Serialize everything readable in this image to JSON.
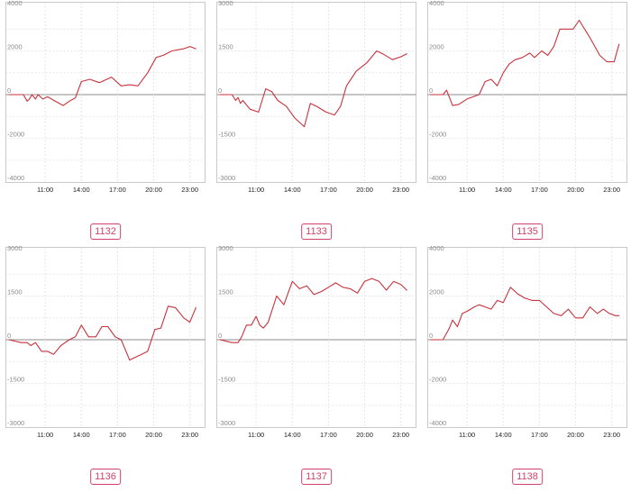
{
  "colors": {
    "line": "#c8323c",
    "badge": "#d0416b"
  },
  "chart_data": [
    {
      "type": "line",
      "title": "1132",
      "ylim": [
        -4000,
        4000
      ],
      "yticks": [
        4000,
        2000,
        0,
        -2000,
        -4000
      ],
      "xlim": [
        8,
        24
      ],
      "xticks": [
        11,
        14,
        17,
        20,
        23
      ],
      "xtick_labels": [
        "11:00",
        "14:00",
        "17:00",
        "20:00",
        "23:00"
      ],
      "x": [
        8.0,
        9.2,
        9.5,
        9.7,
        9.9,
        10.2,
        10.4,
        10.8,
        11.2,
        12.0,
        12.5,
        13.0,
        13.5,
        14.0,
        14.7,
        15.5,
        16.5,
        17.3,
        18.0,
        18.7,
        19.5,
        20.2,
        20.8,
        21.5,
        22.5,
        23.0,
        23.5
      ],
      "y": [
        0,
        0,
        -300,
        -200,
        0,
        -200,
        0,
        -200,
        -100,
        -350,
        -500,
        -300,
        -150,
        600,
        700,
        550,
        800,
        400,
        450,
        400,
        1000,
        1700,
        1800,
        2000,
        2100,
        2200,
        2100
      ]
    },
    {
      "type": "line",
      "title": "1133",
      "ylim": [
        -3000,
        3000
      ],
      "yticks": [
        3000,
        1500,
        0,
        -1500,
        -3000
      ],
      "xlim": [
        8,
        24
      ],
      "xticks": [
        11,
        14,
        17,
        20,
        23
      ],
      "xtick_labels": [
        "11:00",
        "14:00",
        "17:00",
        "20:00",
        "23:00"
      ],
      "x": [
        8.0,
        9.0,
        9.3,
        9.5,
        9.7,
        9.9,
        10.5,
        11.2,
        11.8,
        12.3,
        12.8,
        13.5,
        14.2,
        15.0,
        15.5,
        16.0,
        16.8,
        17.5,
        18.0,
        18.5,
        19.3,
        20.2,
        21.0,
        21.5,
        22.3,
        23.0,
        23.5
      ],
      "y": [
        0,
        0,
        -200,
        -100,
        -300,
        -200,
        -500,
        -600,
        200,
        100,
        -200,
        -400,
        -800,
        -1100,
        -300,
        -400,
        -600,
        -700,
        -400,
        300,
        800,
        1100,
        1500,
        1400,
        1200,
        1300,
        1400
      ]
    },
    {
      "type": "line",
      "title": "1135",
      "ylim": [
        -4000,
        4000
      ],
      "yticks": [
        4000,
        2000,
        0,
        -2000,
        -4000
      ],
      "xlim": [
        8,
        24
      ],
      "xticks": [
        11,
        14,
        17,
        20,
        23
      ],
      "xtick_labels": [
        "11:00",
        "14:00",
        "17:00",
        "20:00",
        "23:00"
      ],
      "x": [
        8.0,
        9.0,
        9.3,
        9.8,
        10.3,
        11.0,
        12.0,
        12.5,
        13.0,
        13.5,
        14.0,
        14.5,
        15.0,
        15.6,
        16.2,
        16.6,
        17.2,
        17.7,
        18.2,
        18.7,
        19.2,
        19.8,
        20.3,
        21.2,
        22.0,
        22.6,
        23.2,
        23.6
      ],
      "y": [
        0,
        0,
        200,
        -500,
        -450,
        -200,
        0,
        600,
        700,
        400,
        1000,
        1400,
        1600,
        1700,
        1900,
        1700,
        2000,
        1800,
        2200,
        3000,
        3000,
        3000,
        3400,
        2600,
        1800,
        1500,
        1500,
        2300
      ]
    },
    {
      "type": "line",
      "title": "1136",
      "ylim": [
        -3000,
        3000
      ],
      "yticks": [
        3000,
        1500,
        0,
        -1500,
        -3000
      ],
      "xlim": [
        8,
        24
      ],
      "xticks": [
        11,
        14,
        17,
        20,
        23
      ],
      "xtick_labels": [
        "11:00",
        "14:00",
        "17:00",
        "20:00",
        "23:00"
      ],
      "x": [
        8.0,
        9.0,
        9.5,
        9.8,
        10.2,
        10.7,
        11.2,
        11.7,
        12.3,
        13.0,
        13.5,
        14.0,
        14.6,
        15.2,
        15.7,
        16.2,
        16.8,
        17.3,
        18.0,
        18.5,
        19.0,
        19.5,
        20.1,
        20.6,
        21.2,
        21.8,
        22.5,
        23.0,
        23.5
      ],
      "y": [
        0,
        -100,
        -100,
        -200,
        -100,
        -400,
        -400,
        -500,
        -200,
        0,
        100,
        500,
        100,
        100,
        450,
        450,
        100,
        0,
        -700,
        -600,
        -500,
        -400,
        350,
        400,
        1150,
        1100,
        750,
        600,
        1100
      ]
    },
    {
      "type": "line",
      "title": "1137",
      "ylim": [
        -3000,
        3000
      ],
      "yticks": [
        3000,
        1500,
        0,
        -1500,
        -3000
      ],
      "xlim": [
        8,
        24
      ],
      "xticks": [
        11,
        14,
        17,
        20,
        23
      ],
      "xtick_labels": [
        "11:00",
        "14:00",
        "17:00",
        "20:00",
        "23:00"
      ],
      "x": [
        8.0,
        9.0,
        9.5,
        9.8,
        10.2,
        10.6,
        11.0,
        11.3,
        11.6,
        12.0,
        12.7,
        13.3,
        14.0,
        14.6,
        15.2,
        15.8,
        16.4,
        17.0,
        17.6,
        18.2,
        18.8,
        19.4,
        20.0,
        20.6,
        21.2,
        21.8,
        22.4,
        23.0,
        23.5
      ],
      "y": [
        0,
        -100,
        -100,
        100,
        500,
        500,
        800,
        500,
        400,
        600,
        1500,
        1200,
        2000,
        1750,
        1850,
        1550,
        1650,
        1800,
        1950,
        1800,
        1750,
        1600,
        2000,
        2100,
        2000,
        1700,
        2000,
        1900,
        1700
      ]
    },
    {
      "type": "line",
      "title": "1138",
      "ylim": [
        -4000,
        4000
      ],
      "yticks": [
        4000,
        2000,
        0,
        -2000,
        -4000
      ],
      "xlim": [
        8,
        24
      ],
      "xticks": [
        11,
        14,
        17,
        20,
        23
      ],
      "xtick_labels": [
        "11:00",
        "14:00",
        "17:00",
        "20:00",
        "23:00"
      ],
      "x": [
        8.0,
        9.0,
        9.5,
        9.8,
        10.2,
        10.6,
        11.0,
        11.6,
        12.0,
        12.5,
        13.0,
        13.5,
        14.0,
        14.6,
        15.2,
        15.8,
        16.4,
        17.0,
        17.6,
        18.2,
        18.8,
        19.4,
        20.0,
        20.6,
        21.2,
        21.8,
        22.3,
        22.8,
        23.3,
        23.6
      ],
      "y": [
        0,
        0,
        500,
        900,
        600,
        1200,
        1300,
        1500,
        1600,
        1500,
        1400,
        1800,
        1700,
        2400,
        2100,
        1900,
        1800,
        1800,
        1500,
        1200,
        1100,
        1400,
        1000,
        1000,
        1500,
        1200,
        1400,
        1200,
        1100,
        1100
      ]
    }
  ]
}
